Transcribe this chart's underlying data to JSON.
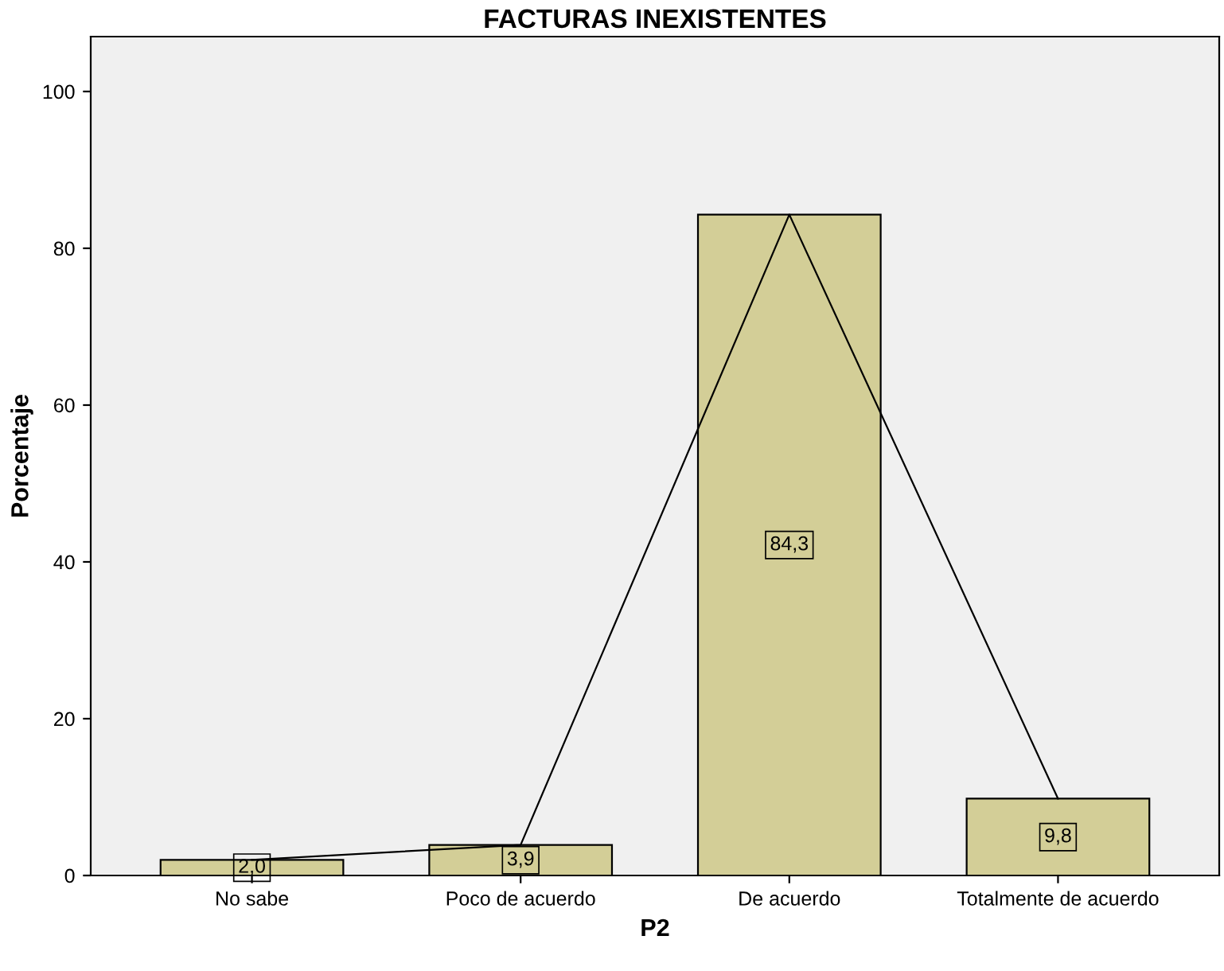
{
  "chart_data": {
    "type": "bar",
    "title": "FACTURAS INEXISTENTES",
    "xlabel": "P2",
    "ylabel": "Porcentaje",
    "categories": [
      "No sabe",
      "Poco de acuerdo",
      "De acuerdo",
      "Totalmente de acuerdo"
    ],
    "series": [
      {
        "color": "#d3ce97",
        "values": [
          2.0,
          3.9,
          84.3,
          9.8
        ],
        "value_labels": [
          "2,0",
          "3,9",
          "84,3",
          "9,8"
        ]
      },
      {
        "type": "line",
        "color": "#000000",
        "values": [
          2.0,
          3.9,
          84.3,
          9.8
        ]
      }
    ],
    "ylim": [
      0,
      107
    ],
    "yticks": [
      0,
      20,
      40,
      60,
      80,
      100
    ],
    "grid": false
  }
}
